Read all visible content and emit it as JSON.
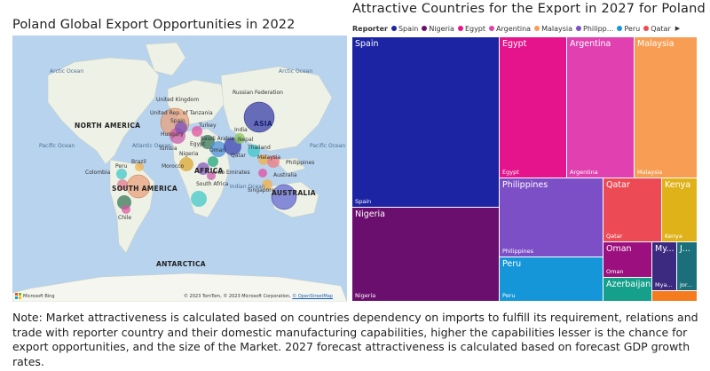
{
  "left_panel": {
    "title": "Poland Global Export Opportunities in 2022",
    "map": {
      "labels": {
        "arctic_ocean_l": "Arctic Ocean",
        "arctic_ocean_r": "Arctic Ocean",
        "north_america": "NORTH AMERICA",
        "south_america": "SOUTH AMERICA",
        "asia": "ASIA",
        "africa": "AFRICA",
        "australia": "AUSTRALIA",
        "antarctica": "ANTARCTICA",
        "pacific_ocean_l": "Pacific Ocean",
        "pacific_ocean_r": "Pacific Ocean",
        "atlantic_ocean": "Atlantic Ocean",
        "indian_ocean": "Indian Ocean",
        "russian_federation": "Russian Federation",
        "united_kingdom": "United Kingdom",
        "tanzania": "United Rep. of Tanzania",
        "spain": "Spain",
        "hungary": "Hungary",
        "tunisia": "Tunisia",
        "morocco": "Morocco",
        "nigeria": "Nigeria",
        "turkey": "Turkey",
        "nepal": "Nepal",
        "india": "India",
        "oman": "Oman",
        "qatar": "Qatar",
        "thailand": "Thailand",
        "malaysia": "Malaysia",
        "philippines": "Philippines",
        "arab_emirates": "Arab Emirates",
        "south_africa": "South Africa",
        "singapore": "Singapore",
        "australia_country": "Australia",
        "brazil": "Brazil",
        "colombia": "Colombia",
        "chile": "Chile",
        "peru": "Peru",
        "saudi_arabia": "Saudi Arabia",
        "egypt": "Egypt"
      },
      "bubble_colors": [
        "#e8a27c",
        "#3a3fa8",
        "#e07b8b",
        "#f0b24a",
        "#40c8c8",
        "#7b4fb8",
        "#f27b7b",
        "#8ac65a",
        "#c85aa8",
        "#4a90d9",
        "#2c6f4f",
        "#e04f9e",
        "#d9a530",
        "#5a5fd0",
        "#1fa77a"
      ],
      "ms_logo_colors": [
        "#f25022",
        "#7fba00",
        "#00a4ef",
        "#ffb900"
      ],
      "ms_brand": "Microsoft Bing",
      "credit_text": "© 2023 TomTom, © 2023 Microsoft Corporation,",
      "credit_link": "© OpenStreetMap"
    }
  },
  "right_panel": {
    "title": "Attractive Countries for the Export in 2027 for Poland",
    "legend": {
      "title": "Reporter",
      "items": [
        {
          "name": "Spain",
          "color": "#1d24a3"
        },
        {
          "name": "Nigeria",
          "color": "#6a0f6e"
        },
        {
          "name": "Egypt",
          "color": "#e6148c"
        },
        {
          "name": "Argentina",
          "color": "#e040b0"
        },
        {
          "name": "Malaysia",
          "color": "#f89e54"
        },
        {
          "name": "Philipp...",
          "color": "#7d4fc6"
        },
        {
          "name": "Peru",
          "color": "#1596d8"
        },
        {
          "name": "Qatar",
          "color": "#ec4a55"
        }
      ]
    },
    "chart_data": {
      "type": "treemap",
      "title": "Attractive Countries for the Export in 2027 for Poland",
      "legend_title": "Reporter",
      "tiles": [
        {
          "name": "Spain",
          "label": "Spain",
          "sublabel": "Spain",
          "color": "#1d24a3"
        },
        {
          "name": "Nigeria",
          "label": "Nigeria",
          "sublabel": "Nigeria",
          "color": "#6a0f6e"
        },
        {
          "name": "Egypt",
          "label": "Egypt",
          "sublabel": "Egypt",
          "color": "#e6148c"
        },
        {
          "name": "Argentina",
          "label": "Argentina",
          "sublabel": "Argentina",
          "color": "#e040b0"
        },
        {
          "name": "Malaysia",
          "label": "Malaysia",
          "sublabel": "Malaysia",
          "color": "#f89e54"
        },
        {
          "name": "Philippines",
          "label": "Philippines",
          "sublabel": "Philippines",
          "color": "#7d4fc6"
        },
        {
          "name": "Peru",
          "label": "Peru",
          "sublabel": "Peru",
          "color": "#1596d8"
        },
        {
          "name": "Qatar",
          "label": "Qatar",
          "sublabel": "Qatar",
          "color": "#ec4a55"
        },
        {
          "name": "Kenya",
          "label": "Kenya",
          "sublabel": "Kenya",
          "color": "#e0b21a"
        },
        {
          "name": "Oman",
          "label": "Oman",
          "sublabel": "Oman",
          "color": "#9c0f7e"
        },
        {
          "name": "Azerbaijan",
          "label": "Azerbaijan",
          "sublabel": "",
          "color": "#14a08a"
        },
        {
          "name": "Mya",
          "label": "My...",
          "sublabel": "Mya...",
          "color": "#3c2a80"
        },
        {
          "name": "Jor",
          "label": "J...",
          "sublabel": "Jor...",
          "color": "#1a6f7a"
        },
        {
          "name": "Other",
          "label": "",
          "sublabel": "",
          "color": "#f57b1f"
        }
      ]
    }
  },
  "note": "Note: Market attractiveness is calculated based on countries dependency on imports to fulfill its requirement, relations and trade with reporter country and their domestic manufacturing capabilities, higher the capabilities lesser is the chance for export opportunities, and the size of the Market. 2027 forecast attractiveness is calculated based on forecast GDP growth rates."
}
